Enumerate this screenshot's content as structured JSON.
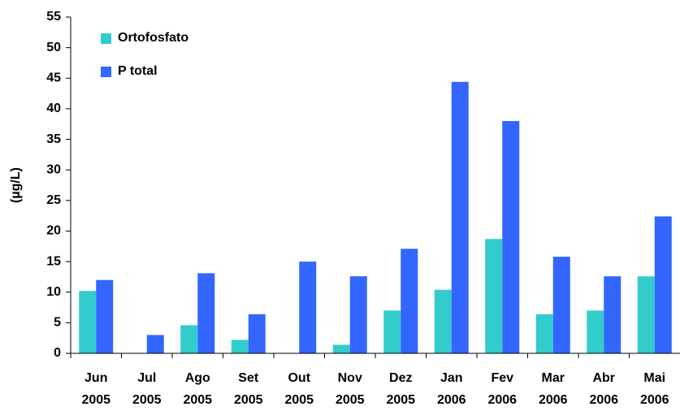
{
  "chart_data": {
    "type": "bar",
    "y_label": "(µg/L)",
    "categories": [
      [
        "Jun",
        "2005"
      ],
      [
        "Jul",
        "2005"
      ],
      [
        "Ago",
        "2005"
      ],
      [
        "Set",
        "2005"
      ],
      [
        "Out",
        "2005"
      ],
      [
        "Nov",
        "2005"
      ],
      [
        "Dez",
        "2005"
      ],
      [
        "Jan",
        "2006"
      ],
      [
        "Fev",
        "2006"
      ],
      [
        "Mar",
        "2006"
      ],
      [
        "Abr",
        "2006"
      ],
      [
        "Mai",
        "2006"
      ]
    ],
    "series": [
      {
        "name": "Ortofosfato",
        "color": "#33cccc",
        "values": [
          10.2,
          null,
          4.6,
          2.2,
          null,
          1.4,
          7,
          10.4,
          18.7,
          6.4,
          7,
          12.6
        ]
      },
      {
        "name": "P total",
        "color": "#3366ff",
        "values": [
          12,
          3,
          13.1,
          6.4,
          15,
          12.6,
          17.1,
          44.4,
          38,
          15.8,
          12.6,
          22.4
        ]
      }
    ],
    "ylim": [
      0,
      55
    ],
    "yticks": [
      0,
      5,
      10,
      15,
      20,
      25,
      30,
      35,
      40,
      45,
      50,
      55
    ],
    "legend": "upper left"
  }
}
